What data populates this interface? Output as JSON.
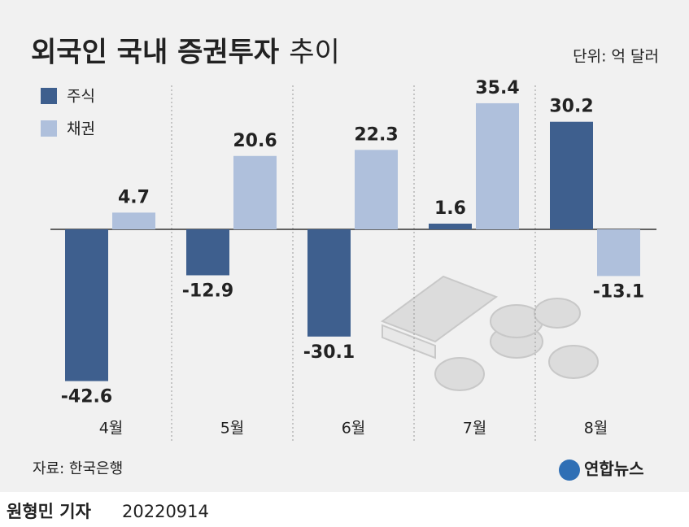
{
  "chart_data": {
    "type": "bar",
    "title": "외국인 국내 증권투자",
    "title_suffix": "추이",
    "unit": "단위: 억 달러",
    "categories": [
      "4월",
      "5월",
      "6월",
      "7월",
      "8월"
    ],
    "series": [
      {
        "name": "주식",
        "color": "#3e5f8e",
        "values": [
          -42.6,
          -12.9,
          -30.1,
          1.6,
          30.2
        ]
      },
      {
        "name": "채권",
        "color": "#afc0dc",
        "values": [
          4.7,
          20.6,
          22.3,
          35.4,
          -13.1
        ]
      }
    ],
    "source": "자료: 한국은행",
    "logo": "연합뉴스"
  },
  "footer": {
    "reporter": "원형민 기자",
    "date": "20220914"
  }
}
